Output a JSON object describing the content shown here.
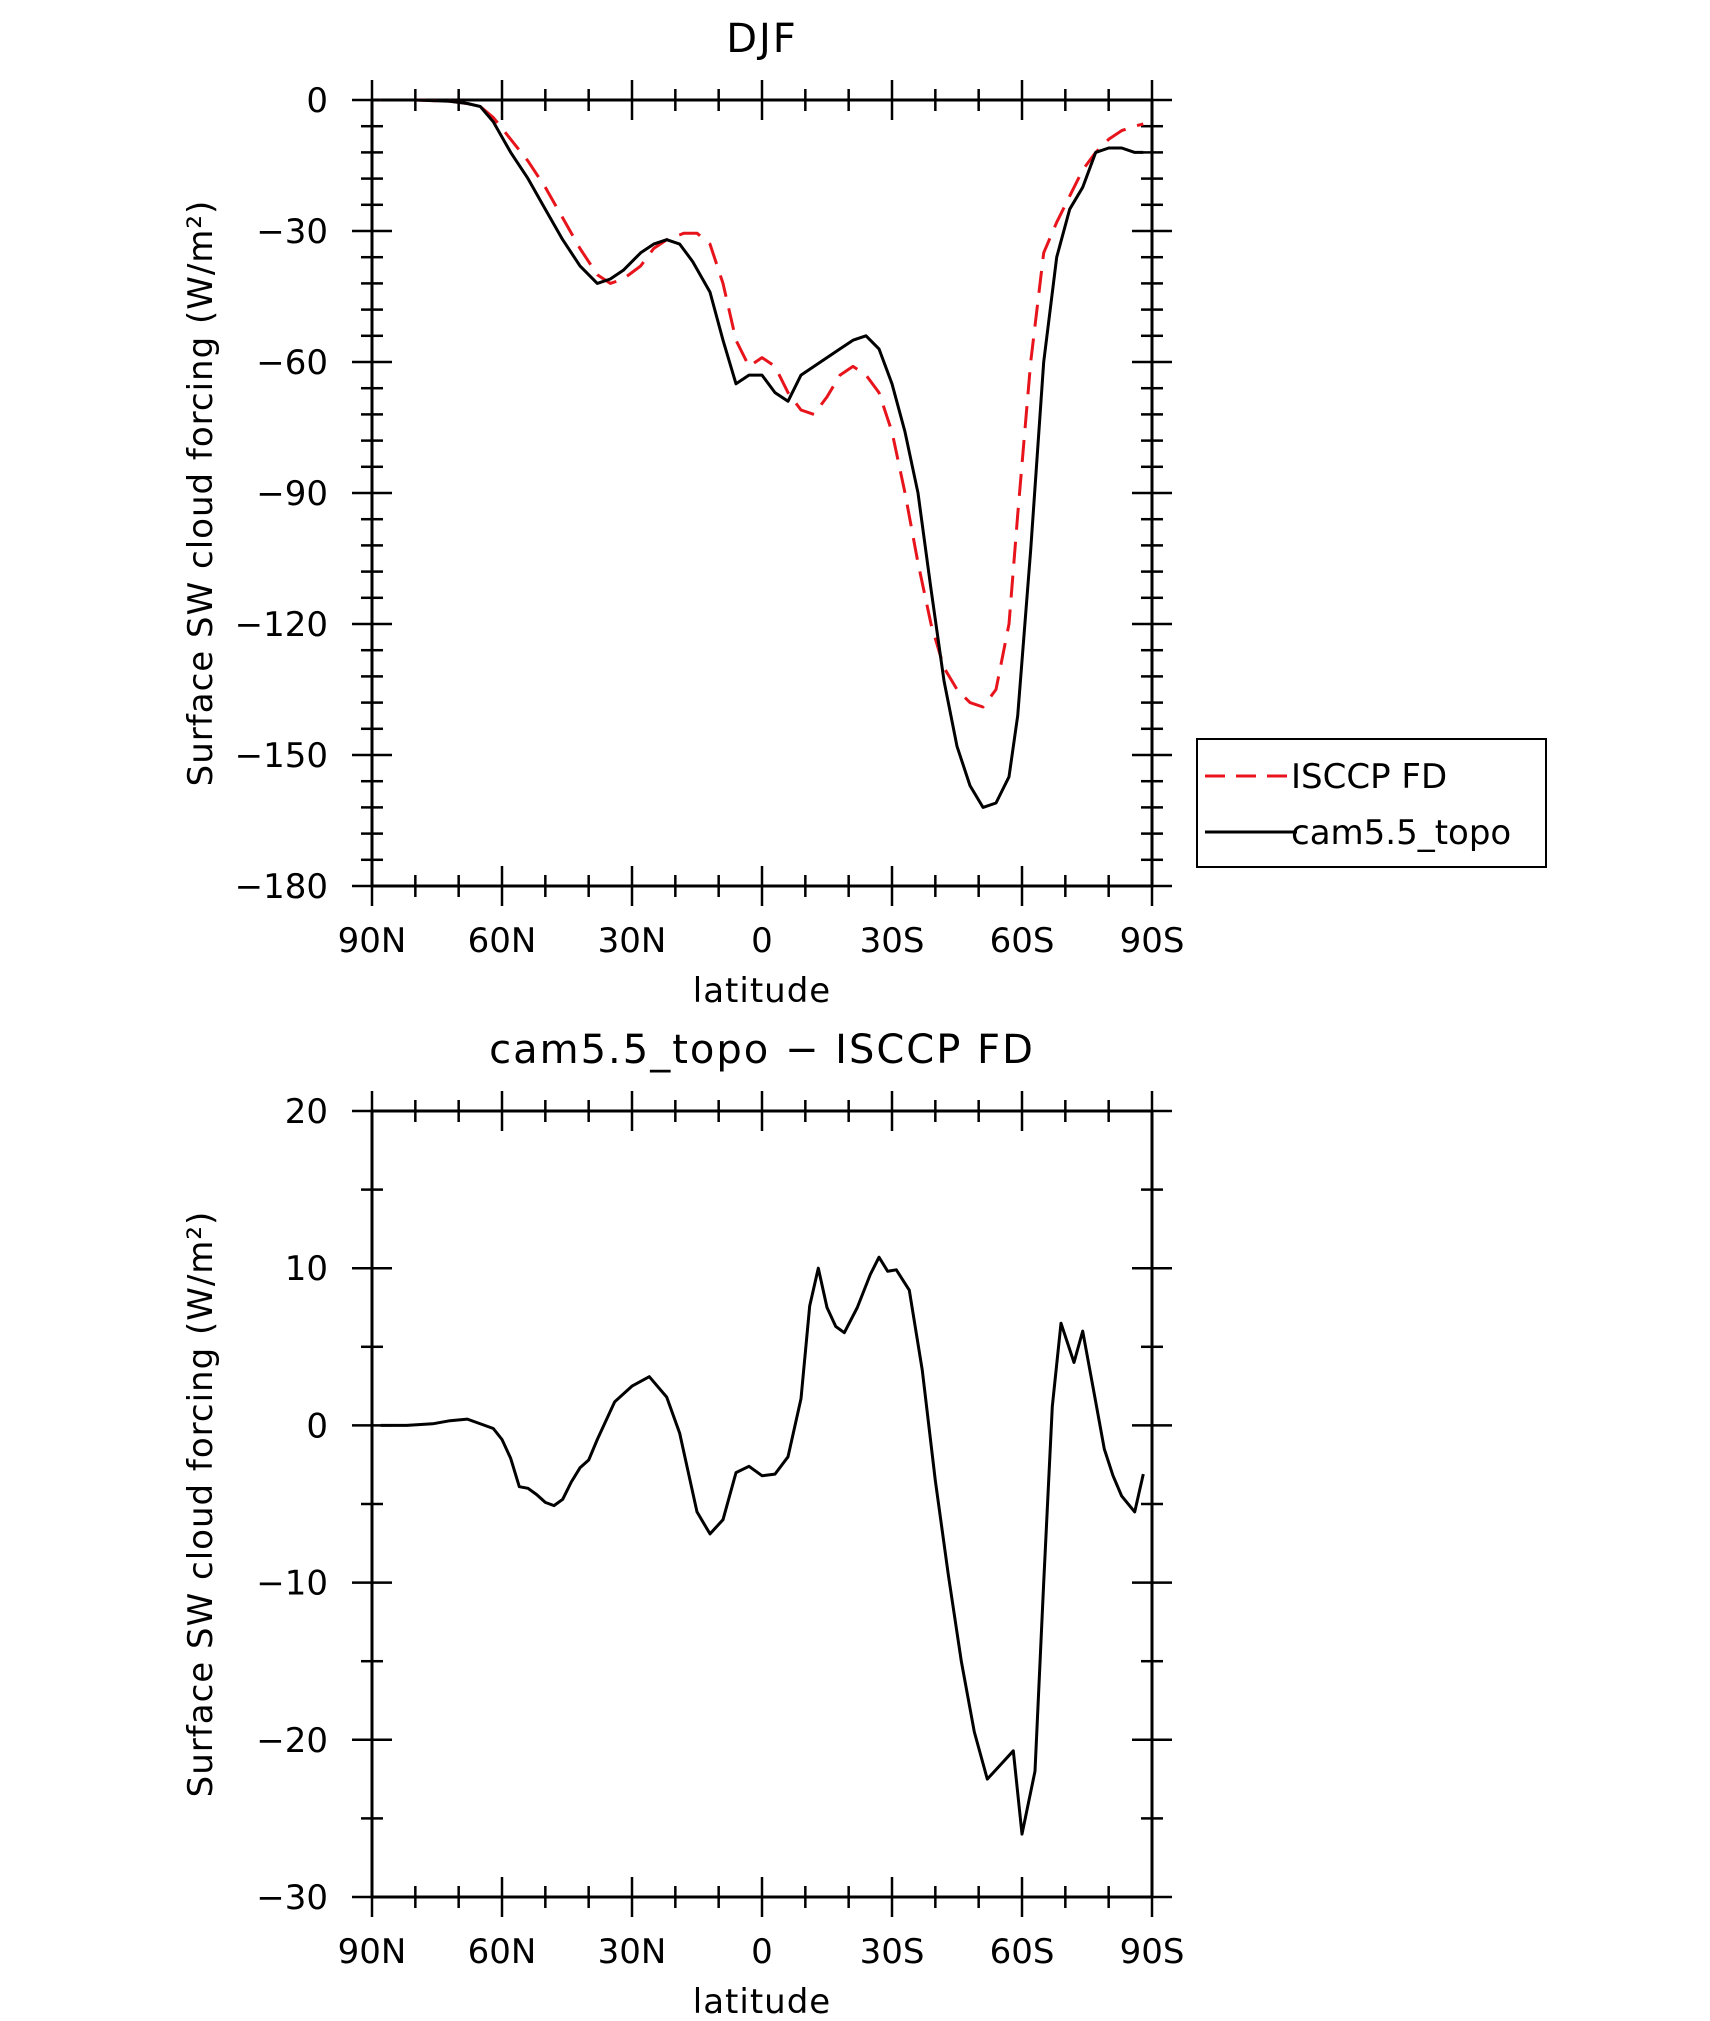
{
  "chart_data": [
    {
      "type": "line",
      "title": "DJF",
      "xlabel": "latitude",
      "ylabel": "Surface SW cloud forcing (W/m²)",
      "xlim": [
        90,
        -90
      ],
      "ylim": [
        -180,
        0
      ],
      "x_ticks": [
        90,
        60,
        30,
        0,
        -30,
        -60,
        -90
      ],
      "x_tick_labels": [
        "90N",
        "60N",
        "30N",
        "0",
        "30S",
        "60S",
        "90S"
      ],
      "y_ticks": [
        0,
        -30,
        -60,
        -90,
        -120,
        -150,
        -180
      ],
      "y_tick_labels": [
        "0",
        "−30",
        "−60",
        "−90",
        "−120",
        "−150",
        "−180"
      ],
      "legend_position": "right-middle",
      "series": [
        {
          "name": "ISCCP FD",
          "color": "#e8141c",
          "dash": "dashed",
          "x": [
            88,
            80,
            72,
            68,
            65,
            62,
            58,
            54,
            50,
            46,
            42,
            38,
            35,
            32,
            28,
            25,
            22,
            18,
            15,
            12,
            9,
            6,
            3,
            0,
            -3,
            -6,
            -9,
            -12,
            -15,
            -18,
            -21,
            -24,
            -27,
            -30,
            -33,
            -36,
            -39,
            -42,
            -45,
            -48,
            -51,
            -54,
            -57,
            -59,
            -62,
            -65,
            -68,
            -71,
            -74,
            -77,
            -80,
            -83,
            -86,
            -88
          ],
          "y": [
            0,
            0,
            -0.3,
            -0.8,
            -1.5,
            -4,
            -9,
            -14,
            -20,
            -27,
            -34,
            -40,
            -42,
            -41,
            -38,
            -34,
            -32,
            -30.5,
            -30.5,
            -33,
            -42,
            -55,
            -61,
            -59,
            -61,
            -67,
            -71,
            -72,
            -68,
            -63,
            -61,
            -63,
            -67,
            -76,
            -90,
            -106,
            -120,
            -130,
            -135,
            -138,
            -139,
            -135,
            -120,
            -95,
            -60,
            -35,
            -28,
            -22,
            -16,
            -12,
            -9,
            -7,
            -6,
            -5.5
          ]
        },
        {
          "name": "cam5.5_topo",
          "color": "#000000",
          "dash": "solid",
          "x": [
            88,
            80,
            72,
            68,
            65,
            62,
            58,
            54,
            50,
            46,
            42,
            38,
            35,
            32,
            28,
            25,
            22,
            19,
            16,
            12,
            9,
            6,
            3,
            0,
            -3,
            -6,
            -9,
            -12,
            -15,
            -18,
            -21,
            -24,
            -27,
            -30,
            -33,
            -36,
            -39,
            -42,
            -45,
            -48,
            -51,
            -54,
            -57,
            -59,
            -62,
            -65,
            -68,
            -71,
            -74,
            -77,
            -80,
            -83,
            -86,
            -88
          ],
          "y": [
            0,
            0,
            -0.3,
            -0.8,
            -1.5,
            -5,
            -12,
            -18,
            -25,
            -32,
            -38,
            -42,
            -41,
            -39,
            -35,
            -33,
            -32,
            -33,
            -37,
            -44,
            -55,
            -65,
            -63,
            -63,
            -67,
            -69,
            -63,
            -61,
            -59,
            -57,
            -55,
            -54,
            -57,
            -65,
            -76,
            -90,
            -112,
            -133,
            -148,
            -157,
            -162,
            -161,
            -155,
            -141,
            -103,
            -60,
            -36,
            -25,
            -20,
            -12,
            -11,
            -11,
            -12,
            -12
          ]
        }
      ]
    },
    {
      "type": "line",
      "title": "cam5.5_topo − ISCCP FD",
      "xlabel": "latitude",
      "ylabel": "Surface SW cloud forcing (W/m²)",
      "xlim": [
        90,
        -90
      ],
      "ylim": [
        -30,
        20
      ],
      "x_ticks": [
        90,
        60,
        30,
        0,
        -30,
        -60,
        -90
      ],
      "x_tick_labels": [
        "90N",
        "60N",
        "30N",
        "0",
        "30S",
        "60S",
        "90S"
      ],
      "y_ticks": [
        20,
        10,
        0,
        -10,
        -20,
        -30
      ],
      "y_tick_labels": [
        "20",
        "10",
        "0",
        "−10",
        "−20",
        "−30"
      ],
      "series": [
        {
          "color": "#000000",
          "dash": "solid",
          "x": [
            88,
            82,
            76,
            72,
            68,
            64,
            62,
            60,
            58,
            56,
            54,
            52,
            50,
            48,
            46,
            44,
            42,
            40,
            38,
            34,
            30,
            26,
            22,
            19,
            15,
            12,
            9,
            6,
            3,
            0,
            -3,
            -6,
            -9,
            -11,
            -13,
            -15,
            -17,
            -19,
            -22,
            -25,
            -27,
            -29,
            -31,
            -34,
            -37,
            -40,
            -43,
            -46,
            -49,
            -52,
            -55,
            -58,
            -60,
            -63,
            -65,
            -67,
            -69,
            -72,
            -74,
            -77,
            -79,
            -81,
            -83,
            -86,
            -88
          ],
          "y": [
            0,
            0,
            0.1,
            0.3,
            0.4,
            0,
            -0.2,
            -0.9,
            -2.1,
            -3.9,
            -4,
            -4.4,
            -4.9,
            -5.1,
            -4.7,
            -3.6,
            -2.7,
            -2.2,
            -0.9,
            1.5,
            2.5,
            3.1,
            1.8,
            -0.5,
            -5.5,
            -6.9,
            -6,
            -3,
            -2.6,
            -3.2,
            -3.1,
            -2,
            1.7,
            7.6,
            10,
            7.5,
            6.3,
            5.9,
            7.5,
            9.6,
            10.7,
            9.8,
            9.9,
            8.6,
            3.5,
            -3.5,
            -9.5,
            -15,
            -19.5,
            -22.5,
            -21.6,
            -20.7,
            -26,
            -22,
            -10,
            1.2,
            6.5,
            4,
            6,
            1.5,
            -1.5,
            -3.2,
            -4.5,
            -5.5,
            -3.1
          ]
        }
      ]
    }
  ]
}
